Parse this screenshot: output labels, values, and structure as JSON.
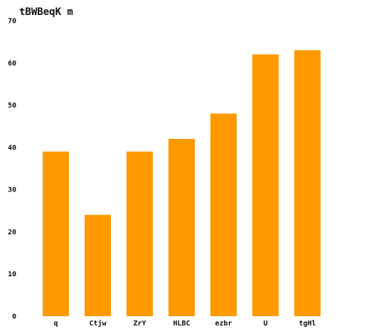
{
  "chart_data": {
    "type": "bar",
    "title": "tBWBeqK m",
    "xlabel": "",
    "ylabel": "",
    "categories": [
      "q",
      "Ctjw",
      "ZrY",
      "HLBC",
      "ezbr",
      "U",
      "tgHl"
    ],
    "values": [
      39,
      24,
      39,
      42,
      48,
      62,
      63
    ],
    "ylim": [
      0,
      70
    ],
    "yticks": [
      0,
      10,
      20,
      30,
      40,
      50,
      60,
      70
    ],
    "grid": false,
    "bar_color": "#ff9900"
  }
}
